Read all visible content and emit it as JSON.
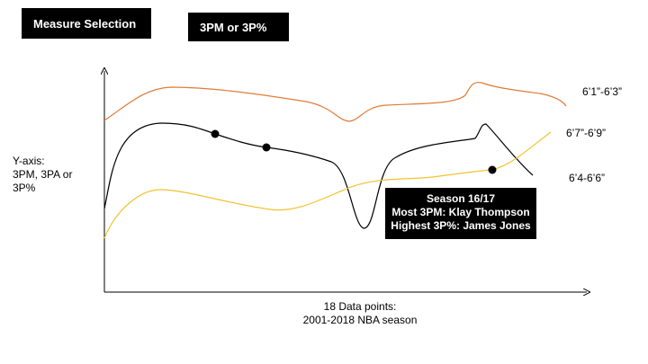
{
  "controls": {
    "measure_label": "Measure Selection",
    "metric_label": "3PM or 3P%"
  },
  "axes": {
    "y_label_lines": [
      "Y-axis:",
      "3PM, 3PA or",
      "3P%"
    ],
    "x_label_lines": [
      "18 Data points:",
      "2001-2018 NBA season"
    ]
  },
  "series": [
    {
      "name": "6’1”-6’3”",
      "color": "#E07B39"
    },
    {
      "name": "6’7”-6’9”",
      "color": "#000000"
    },
    {
      "name": "6’4-6’6”",
      "color": "#F2C230"
    }
  ],
  "tooltip": {
    "lines": [
      "Season 16/17",
      "Most 3PM: Klay Thompson",
      "Highest 3P%: James Jones"
    ]
  }
}
